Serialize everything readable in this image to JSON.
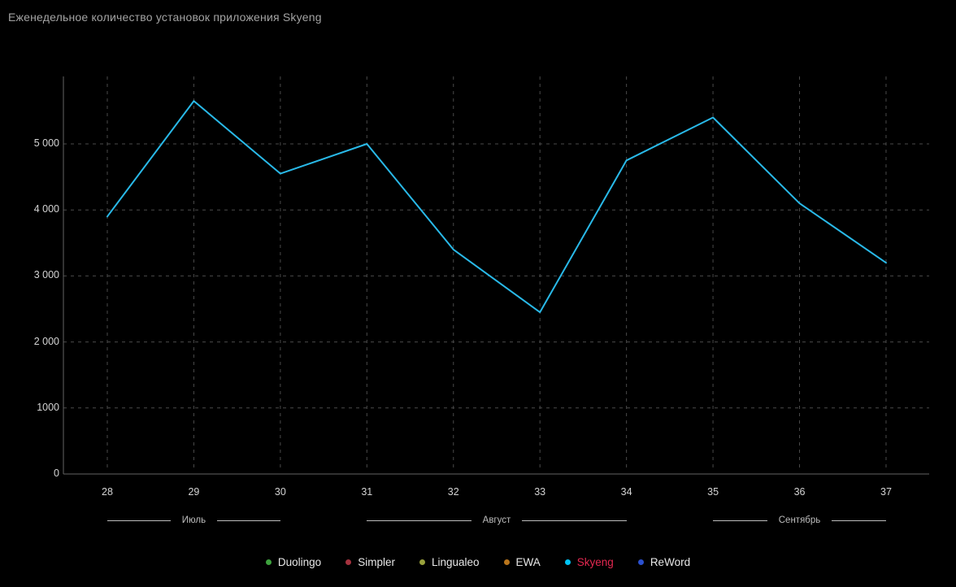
{
  "title": "Еженедельное количество установок приложения Skyeng",
  "colors": {
    "background": "#000000",
    "title_text": "#a3a3a3",
    "grid": "#4a4a4a",
    "axis": "#636363",
    "tick_text": "#d4d4d4",
    "month_text": "#bdbdbd",
    "legend_text": "#e8e8e8",
    "skyeng_line": "#29b9e8",
    "skyeng_legend_text": "#e22850"
  },
  "chart_data": {
    "type": "line",
    "title": "Еженедельное количество установок приложения Skyeng",
    "x": [
      "28",
      "29",
      "30",
      "31",
      "32",
      "33",
      "34",
      "35",
      "36",
      "37"
    ],
    "series": [
      {
        "name": "Skyeng",
        "color": "#29b9e8",
        "values": [
          3900,
          5650,
          4550,
          5000,
          3400,
          2450,
          4750,
          5400,
          4100,
          3200
        ]
      }
    ],
    "xlabel": "",
    "ylabel": "",
    "ylim": [
      0,
      6040
    ],
    "grid": true,
    "legend_position": "bottom",
    "yticks": [
      {
        "value": 0,
        "label": "0"
      },
      {
        "value": 1000,
        "label": "1000"
      },
      {
        "value": 2000,
        "label": "2 000"
      },
      {
        "value": 3000,
        "label": "3 000"
      },
      {
        "value": 4000,
        "label": "4 000"
      },
      {
        "value": 5000,
        "label": "5 000"
      }
    ],
    "months": [
      {
        "label": "Июль",
        "from_week": "28",
        "to_week": "30"
      },
      {
        "label": "Август",
        "from_week": "31",
        "to_week": "34"
      },
      {
        "label": "Сентябрь",
        "from_week": "35",
        "to_week": "37"
      }
    ]
  },
  "legend": {
    "items": [
      {
        "id": "duolingo",
        "label": "Duolingo",
        "dot_color": "#3ea23e",
        "text_color": "#e8e8e8"
      },
      {
        "id": "simpler",
        "label": "Simpler",
        "dot_color": "#a5323e",
        "text_color": "#e8e8e8"
      },
      {
        "id": "lingualeo",
        "label": "Lingualeo",
        "dot_color": "#99a13c",
        "text_color": "#e8e8e8"
      },
      {
        "id": "ewa",
        "label": "EWA",
        "dot_color": "#b9751c",
        "text_color": "#e8e8e8"
      },
      {
        "id": "skyeng",
        "label": "Skyeng",
        "dot_color": "#00c4f5",
        "text_color": "#e22850"
      },
      {
        "id": "reword",
        "label": "ReWord",
        "dot_color": "#2b50cf",
        "text_color": "#e8e8e8"
      }
    ]
  }
}
